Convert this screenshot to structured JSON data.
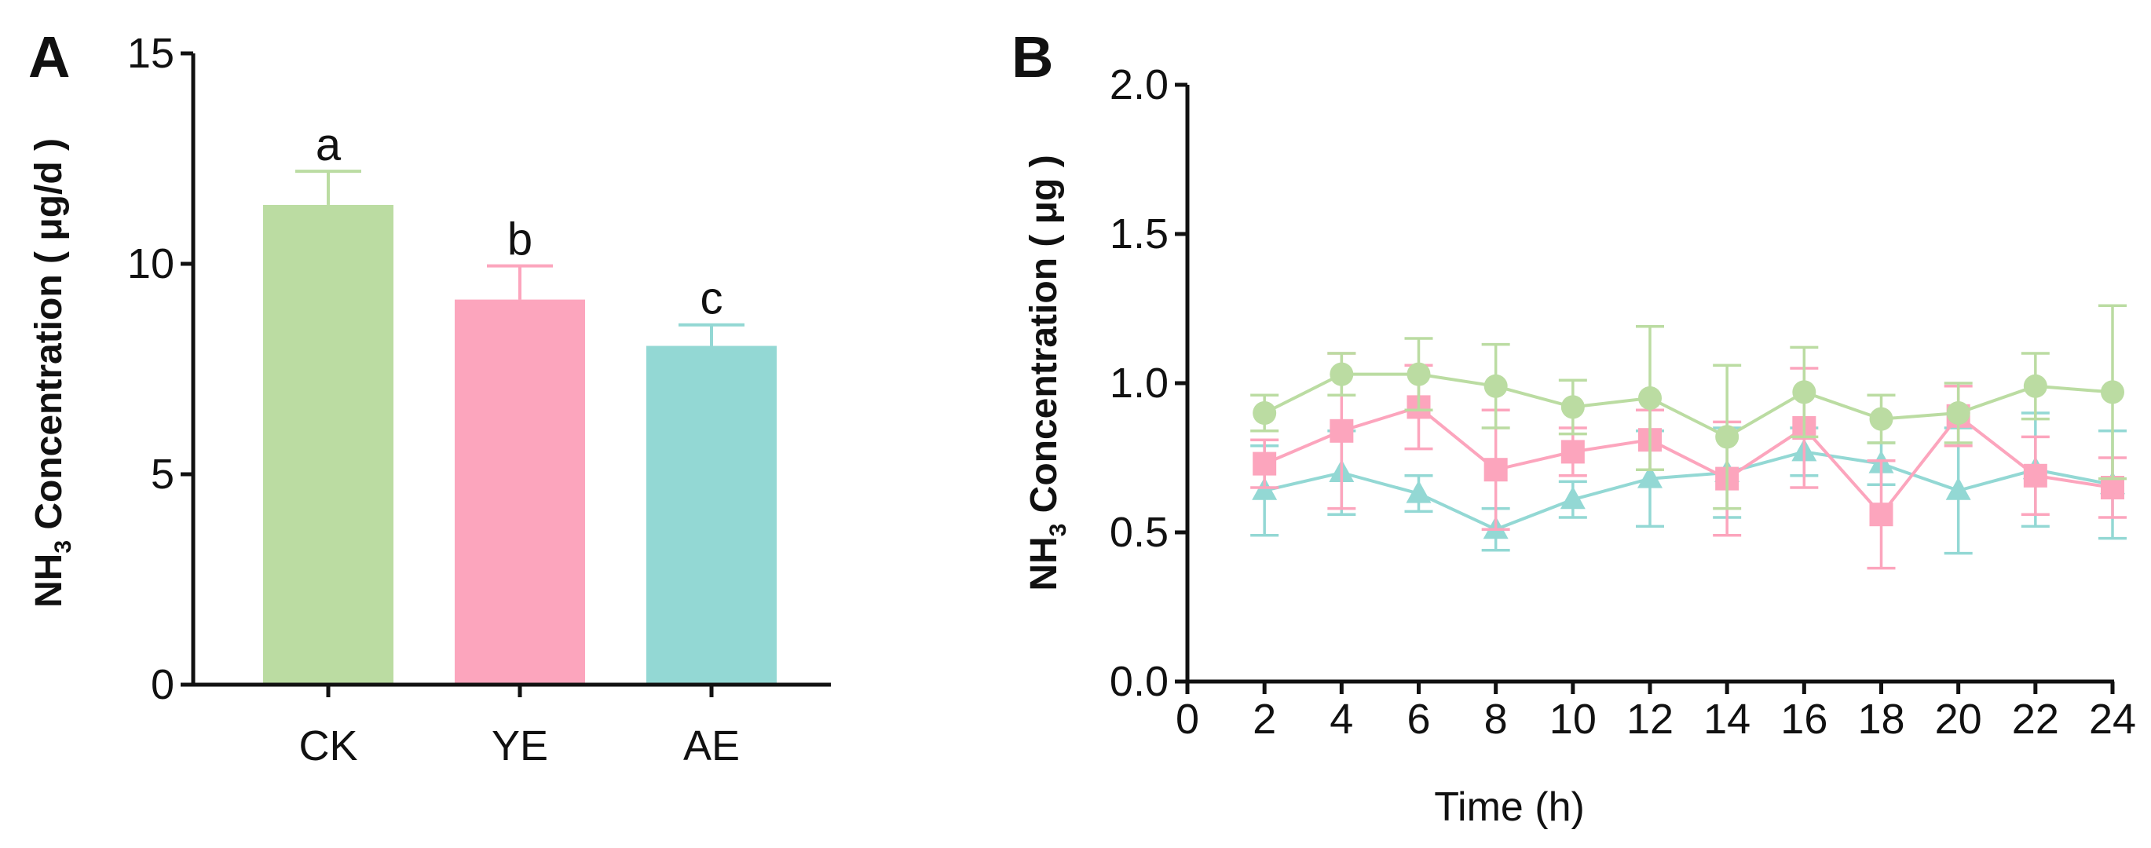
{
  "colors": {
    "ck": "#bbdca2",
    "ye": "#fca5bd",
    "ae": "#93d8d4",
    "axis": "#111111"
  },
  "chart_data": [
    {
      "panel": "A",
      "type": "bar",
      "categories": [
        "CK",
        "YE",
        "AE"
      ],
      "values": [
        11.4,
        9.15,
        8.05
      ],
      "errors": [
        0.8,
        0.8,
        0.5
      ],
      "significance": [
        "a",
        "b",
        "c"
      ],
      "ylabel_prefix": "NH",
      "ylabel_sub": "3",
      "ylabel_suffix": " Concentration ( μg/d )",
      "ylim": [
        0,
        15
      ],
      "yticks": [
        0,
        5,
        10,
        15
      ],
      "ytick_labels": [
        "0",
        "5",
        "10",
        "15"
      ],
      "legend": "none",
      "grid": false
    },
    {
      "panel": "B",
      "type": "line",
      "x": [
        2,
        4,
        6,
        8,
        10,
        12,
        14,
        16,
        18,
        20,
        22,
        24
      ],
      "series": [
        {
          "name": "CK",
          "marker": "circle",
          "color": "#bbdca2",
          "values": [
            0.9,
            1.03,
            1.03,
            0.99,
            0.92,
            0.95,
            0.82,
            0.97,
            0.88,
            0.9,
            0.99,
            0.97
          ],
          "errors": [
            0.06,
            0.07,
            0.12,
            0.14,
            0.09,
            0.24,
            0.24,
            0.15,
            0.08,
            0.1,
            0.11,
            0.29
          ]
        },
        {
          "name": "YE",
          "marker": "square",
          "color": "#fca5bd",
          "values": [
            0.73,
            0.84,
            0.92,
            0.71,
            0.77,
            0.81,
            0.68,
            0.85,
            0.56,
            0.89,
            0.69,
            0.65
          ],
          "errors": [
            0.08,
            0.26,
            0.14,
            0.2,
            0.08,
            0.1,
            0.19,
            0.2,
            0.18,
            0.1,
            0.13,
            0.1
          ]
        },
        {
          "name": "AE",
          "marker": "triangle",
          "color": "#93d8d4",
          "values": [
            0.64,
            0.7,
            0.63,
            0.51,
            0.61,
            0.68,
            0.7,
            0.77,
            0.73,
            0.64,
            0.71,
            0.66
          ],
          "errors": [
            0.15,
            0.14,
            0.06,
            0.07,
            0.06,
            0.16,
            0.15,
            0.08,
            0.07,
            0.21,
            0.19,
            0.18
          ]
        }
      ],
      "xlabel": "Time (h)",
      "ylabel_prefix": "NH",
      "ylabel_sub": "3",
      "ylabel_suffix": " Concentration ( μg )",
      "xlim": [
        0,
        24
      ],
      "ylim": [
        0,
        2.0
      ],
      "xticks": [
        0,
        2,
        4,
        6,
        8,
        10,
        12,
        14,
        16,
        18,
        20,
        22,
        24
      ],
      "xtick_labels": [
        "0",
        "2",
        "4",
        "6",
        "8",
        "10",
        "12",
        "14",
        "16",
        "18",
        "20",
        "22",
        "24"
      ],
      "yticks": [
        0,
        0.5,
        1.0,
        1.5,
        2.0
      ],
      "ytick_labels": [
        "0.0",
        "0.5",
        "1.0",
        "1.5",
        "2.0"
      ],
      "legend": "none",
      "grid": false
    }
  ]
}
